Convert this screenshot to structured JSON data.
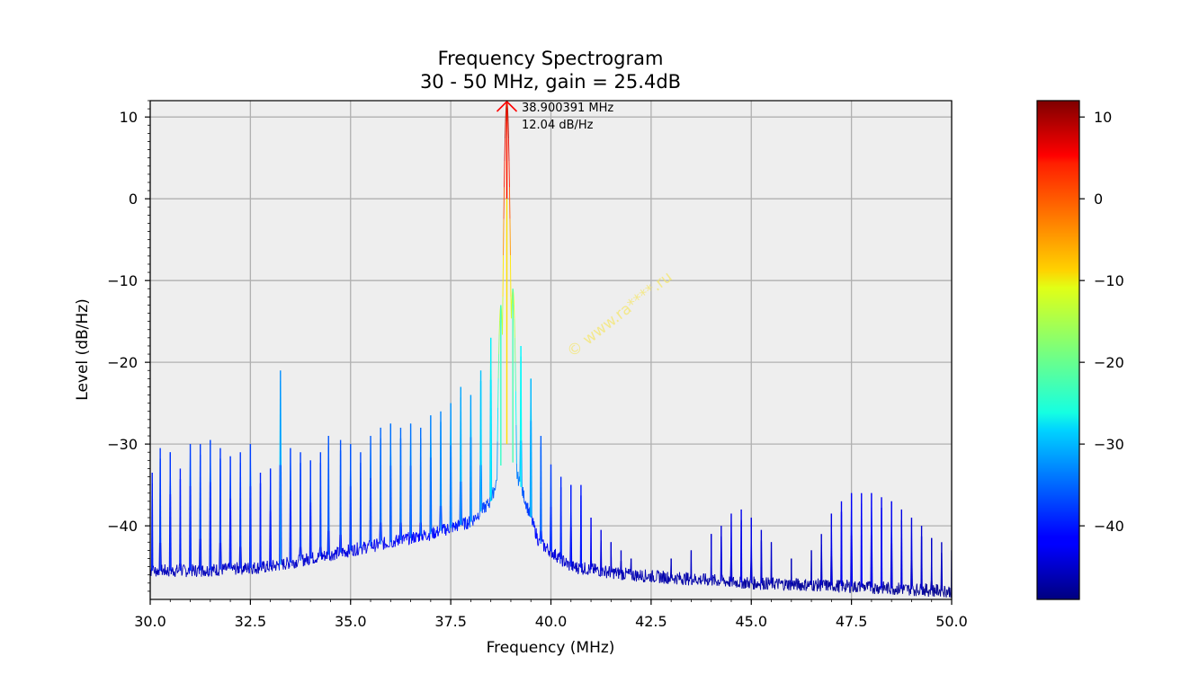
{
  "chart_data": {
    "type": "line",
    "title": "Frequency Spectrogram",
    "subtitle": "30 - 50 MHz, gain = 25.4dB",
    "xlabel": "Frequency (MHz)",
    "ylabel": "Level (dB/Hz)",
    "xlim": [
      30.0,
      50.0
    ],
    "ylim": [
      -49,
      12
    ],
    "grid": true,
    "x_ticks": [
      "30.0",
      "32.5",
      "35.0",
      "37.5",
      "40.0",
      "42.5",
      "45.0",
      "47.5",
      "50.0"
    ],
    "y_ticks": [
      "10",
      "0",
      "−10",
      "−20",
      "−30",
      "−40"
    ],
    "colorbar": {
      "colormap": "jet",
      "range": [
        -49,
        12
      ],
      "ticks": [
        "10",
        "0",
        "−10",
        "−20",
        "−30",
        "−40"
      ]
    },
    "peak_annotation": {
      "frequency": 38.900391,
      "level": 12.04,
      "label_frequency": "38.900391 MHz",
      "label_level": "12.04 dB/Hz"
    },
    "watermark": "© www.ra****.ru",
    "noise_floor": [
      [
        30.0,
        -45.5
      ],
      [
        31.0,
        -45.5
      ],
      [
        32.0,
        -45.3
      ],
      [
        33.0,
        -45.0
      ],
      [
        34.0,
        -44.0
      ],
      [
        35.0,
        -43.0
      ],
      [
        36.0,
        -42.0
      ],
      [
        37.0,
        -41.0
      ],
      [
        38.0,
        -39.5
      ],
      [
        38.5,
        -37.0
      ],
      [
        38.9,
        -30.0
      ],
      [
        39.3,
        -36.0
      ],
      [
        39.7,
        -42.0
      ],
      [
        40.5,
        -45.0
      ],
      [
        42.0,
        -46.0
      ],
      [
        45.0,
        -47.0
      ],
      [
        47.0,
        -47.3
      ],
      [
        50.0,
        -48.0
      ]
    ],
    "peaks": [
      [
        30.05,
        -33.5
      ],
      [
        30.25,
        -30.5
      ],
      [
        30.5,
        -31.0
      ],
      [
        30.75,
        -33.0
      ],
      [
        31.0,
        -30.0
      ],
      [
        31.25,
        -30.0
      ],
      [
        31.5,
        -29.5
      ],
      [
        31.75,
        -30.5
      ],
      [
        32.0,
        -31.5
      ],
      [
        32.25,
        -31.0
      ],
      [
        32.5,
        -30.0
      ],
      [
        32.75,
        -33.5
      ],
      [
        33.0,
        -33.0
      ],
      [
        33.25,
        -21.0
      ],
      [
        33.5,
        -30.5
      ],
      [
        33.75,
        -31.0
      ],
      [
        34.0,
        -32.0
      ],
      [
        34.25,
        -31.0
      ],
      [
        34.45,
        -29.0
      ],
      [
        34.75,
        -29.5
      ],
      [
        35.0,
        -30.0
      ],
      [
        35.25,
        -31.0
      ],
      [
        35.5,
        -29.0
      ],
      [
        35.75,
        -28.0
      ],
      [
        36.0,
        -27.5
      ],
      [
        36.25,
        -28.0
      ],
      [
        36.5,
        -27.5
      ],
      [
        36.75,
        -28.0
      ],
      [
        37.0,
        -26.5
      ],
      [
        37.25,
        -26.0
      ],
      [
        37.5,
        -25.0
      ],
      [
        37.75,
        -23.0
      ],
      [
        38.0,
        -24.0
      ],
      [
        38.25,
        -21.0
      ],
      [
        38.5,
        -17.0
      ],
      [
        38.75,
        -13.0
      ],
      [
        38.9,
        12.04
      ],
      [
        39.05,
        -11.0
      ],
      [
        39.25,
        -18.0
      ],
      [
        39.5,
        -22.0
      ],
      [
        39.75,
        -29.0
      ],
      [
        40.0,
        -32.5
      ],
      [
        40.25,
        -34.0
      ],
      [
        40.5,
        -35.0
      ],
      [
        40.75,
        -35.0
      ],
      [
        41.0,
        -39.0
      ],
      [
        41.25,
        -40.5
      ],
      [
        41.5,
        -42.0
      ],
      [
        41.75,
        -43.0
      ],
      [
        42.0,
        -44.0
      ],
      [
        43.0,
        -44.0
      ],
      [
        43.5,
        -43.0
      ],
      [
        44.0,
        -41.0
      ],
      [
        44.25,
        -40.0
      ],
      [
        44.5,
        -38.5
      ],
      [
        44.75,
        -38.0
      ],
      [
        45.0,
        -39.0
      ],
      [
        45.25,
        -40.5
      ],
      [
        45.5,
        -42.0
      ],
      [
        46.0,
        -44.0
      ],
      [
        46.5,
        -43.0
      ],
      [
        46.75,
        -41.0
      ],
      [
        47.0,
        -38.5
      ],
      [
        47.25,
        -37.0
      ],
      [
        47.5,
        -36.0
      ],
      [
        47.75,
        -36.0
      ],
      [
        48.0,
        -36.0
      ],
      [
        48.25,
        -36.5
      ],
      [
        48.5,
        -37.0
      ],
      [
        48.75,
        -38.0
      ],
      [
        49.0,
        -39.0
      ],
      [
        49.25,
        -40.0
      ],
      [
        49.5,
        -41.5
      ],
      [
        49.75,
        -42.0
      ],
      [
        50.0,
        -43.0
      ]
    ]
  }
}
